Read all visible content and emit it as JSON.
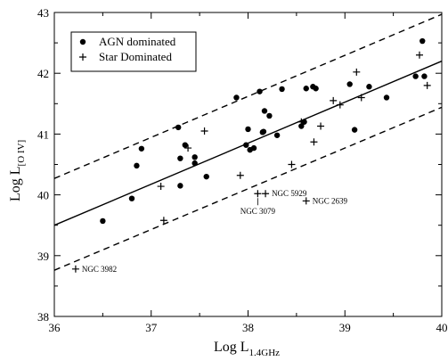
{
  "chart_data": {
    "type": "scatter",
    "xlabel": {
      "main": "Log L",
      "sub": "1.4GHz"
    },
    "ylabel": {
      "main": "Log L",
      "sub": "[O IV]"
    },
    "xlim": [
      36,
      40
    ],
    "ylim": [
      38,
      43
    ],
    "x_ticks": [
      "36",
      "37",
      "38",
      "39",
      "40"
    ],
    "y_ticks": [
      "38",
      "39",
      "40",
      "41",
      "42",
      "43"
    ],
    "legend": {
      "position": "top-left",
      "entries": [
        "AGN dominated",
        "Star Dominated"
      ]
    },
    "series": [
      {
        "name": "AGN dominated",
        "marker": "dot",
        "points": [
          [
            36.5,
            39.57
          ],
          [
            36.8,
            39.94
          ],
          [
            36.85,
            40.48
          ],
          [
            36.9,
            40.76
          ],
          [
            37.28,
            41.11
          ],
          [
            37.3,
            40.6
          ],
          [
            37.3,
            40.15
          ],
          [
            37.35,
            40.82
          ],
          [
            37.45,
            40.52
          ],
          [
            37.45,
            40.62
          ],
          [
            37.57,
            40.3
          ],
          [
            37.88,
            41.6
          ],
          [
            37.98,
            40.82
          ],
          [
            38.0,
            41.08
          ],
          [
            38.02,
            40.74
          ],
          [
            38.06,
            40.77
          ],
          [
            38.12,
            41.7
          ],
          [
            38.15,
            41.03
          ],
          [
            38.16,
            41.04
          ],
          [
            38.17,
            41.38
          ],
          [
            38.22,
            41.3
          ],
          [
            38.3,
            40.98
          ],
          [
            38.35,
            41.74
          ],
          [
            38.55,
            41.13
          ],
          [
            38.58,
            41.2
          ],
          [
            38.6,
            41.75
          ],
          [
            38.67,
            41.78
          ],
          [
            38.7,
            41.75
          ],
          [
            39.05,
            41.82
          ],
          [
            39.1,
            41.07
          ],
          [
            39.25,
            41.78
          ],
          [
            39.43,
            41.6
          ],
          [
            39.73,
            41.95
          ],
          [
            39.8,
            42.53
          ],
          [
            39.82,
            41.95
          ]
        ]
      },
      {
        "name": "Star Dominated",
        "marker": "plus",
        "points": [
          [
            36.22,
            38.78
          ],
          [
            37.1,
            40.14
          ],
          [
            37.13,
            39.58
          ],
          [
            37.38,
            40.77
          ],
          [
            37.55,
            41.05
          ],
          [
            37.92,
            40.32
          ],
          [
            38.1,
            40.02
          ],
          [
            38.18,
            40.02
          ],
          [
            38.45,
            40.5
          ],
          [
            38.55,
            41.2
          ],
          [
            38.6,
            39.9
          ],
          [
            38.68,
            40.87
          ],
          [
            38.75,
            41.13
          ],
          [
            38.88,
            41.55
          ],
          [
            38.95,
            41.48
          ],
          [
            39.12,
            42.02
          ],
          [
            39.17,
            41.6
          ],
          [
            39.77,
            42.3
          ],
          [
            39.85,
            41.8
          ]
        ]
      }
    ],
    "fit_lines": [
      {
        "style": "solid",
        "points": [
          [
            36,
            39.5
          ],
          [
            40,
            42.2
          ]
        ]
      },
      {
        "style": "dashed",
        "points": [
          [
            36,
            40.27
          ],
          [
            40,
            42.97
          ]
        ]
      },
      {
        "style": "dashed",
        "points": [
          [
            36,
            38.76
          ],
          [
            40,
            41.44
          ]
        ]
      }
    ],
    "annotations": [
      {
        "text": "NGC 3982",
        "x": 36.22,
        "y": 38.78,
        "anchor": "right"
      },
      {
        "text": "NGC 5929",
        "x": 38.18,
        "y": 40.02,
        "anchor": "right"
      },
      {
        "text": "NGC 3079",
        "x": 38.1,
        "y": 40.02,
        "anchor": "below"
      },
      {
        "text": "NGC 2639",
        "x": 38.6,
        "y": 39.9,
        "anchor": "right"
      }
    ]
  }
}
